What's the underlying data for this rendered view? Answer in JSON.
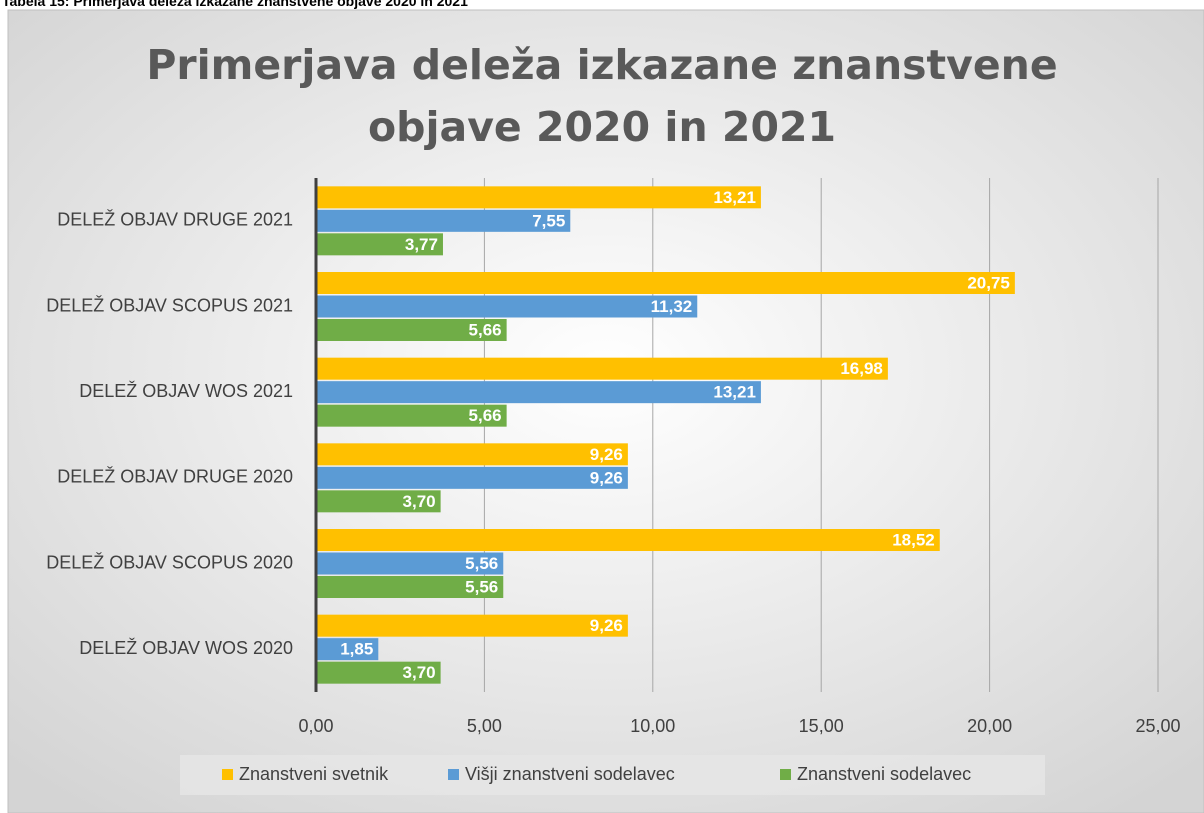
{
  "caption": "Tabela 15: Primerjava deleža izkazane znanstvene objave 2020 in 2021",
  "chart_data": {
    "type": "hbar",
    "title": "Primerjava deleža izkazane znanstvene objave 2020 in 2021",
    "categories": [
      "DELEŽ OBJAV DRUGE 2021",
      "DELEŽ OBJAV SCOPUS 2021",
      "DELEŽ OBJAV WOS 2021",
      "DELEŽ OBJAV DRUGE 2020",
      "DELEŽ OBJAV SCOPUS 2020",
      "DELEŽ OBJAV WOS 2020"
    ],
    "series": [
      {
        "name": "Znanstveni svetnik",
        "color": "#ffc000",
        "values": [
          13.21,
          20.75,
          16.98,
          9.26,
          18.52,
          9.26
        ],
        "value_labels": [
          "13,21",
          "20,75",
          "16,98",
          "9,26",
          "18,52",
          "9,26"
        ]
      },
      {
        "name": "Višji znanstveni sodelavec",
        "color": "#5b9bd5",
        "values": [
          7.55,
          11.32,
          13.21,
          9.26,
          5.56,
          1.85
        ],
        "value_labels": [
          "7,55",
          "11,32",
          "13,21",
          "9,26",
          "5,56",
          "1,85"
        ]
      },
      {
        "name": "Znanstveni sodelavec",
        "color": "#70ad47",
        "values": [
          3.77,
          5.66,
          5.66,
          3.7,
          5.56,
          3.7
        ],
        "value_labels": [
          "3,77",
          "5,66",
          "5,66",
          "3,70",
          "5,56",
          "3,70"
        ]
      }
    ],
    "xlim": [
      0,
      25
    ],
    "xticks": [
      {
        "value": 0,
        "label": "0,00"
      },
      {
        "value": 5,
        "label": "5,00"
      },
      {
        "value": 10,
        "label": "10,00"
      },
      {
        "value": 15,
        "label": "15,00"
      },
      {
        "value": 20,
        "label": "20,00"
      },
      {
        "value": 25,
        "label": "25,00"
      }
    ],
    "grid": true,
    "legend": "bottom"
  }
}
